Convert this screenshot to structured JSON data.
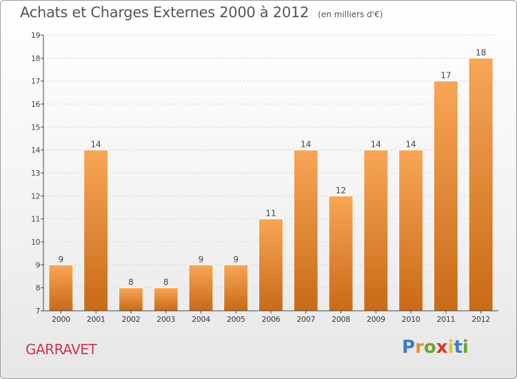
{
  "title": "Achats et Charges Externes 2000 à 2012",
  "subtitle": "(en milliers d'€)",
  "commune": "GARRAVET",
  "logo": {
    "letters": [
      "P",
      "r",
      "o",
      "x",
      "i",
      "t",
      "i"
    ],
    "colors": [
      "#3b7dc4",
      "#e8912b",
      "#6aa531",
      "#d9342b",
      "#e8c12b",
      "#3b7dc4",
      "#6aa531"
    ]
  },
  "colors": {
    "bar": "#f0953d",
    "bar_dark": "#c86a1a",
    "axis": "#444444",
    "grid": "#cccccc"
  },
  "chart_data": {
    "type": "bar",
    "categories": [
      "2000",
      "2001",
      "2002",
      "2003",
      "2004",
      "2005",
      "2006",
      "2007",
      "2008",
      "2009",
      "2010",
      "2011",
      "2012"
    ],
    "values": [
      9,
      14,
      8,
      8,
      9,
      9,
      11,
      14,
      12,
      14,
      14,
      17,
      18
    ],
    "data_labels": [
      "9",
      "14",
      "8",
      "8",
      "9",
      "9",
      "11",
      "14",
      "12",
      "14",
      "14",
      "17",
      "18"
    ],
    "yticks": [
      "7",
      "8",
      "9",
      "10",
      "11",
      "12",
      "13",
      "14",
      "15",
      "16",
      "17",
      "18",
      "19"
    ],
    "ylim": [
      7,
      19
    ],
    "grid": true,
    "title": "Achats et Charges Externes 2000 à 2012",
    "xlabel": "",
    "ylabel": ""
  }
}
